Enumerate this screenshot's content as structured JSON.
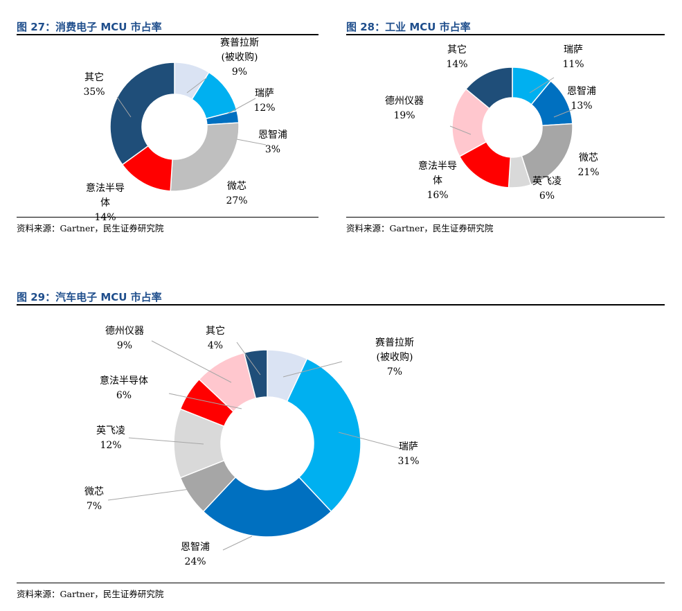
{
  "charts": [
    {
      "title": "图 27：消费电子 MCU 市占率",
      "source": "资料来源：Gartner，民生证券研究院",
      "chart_data": {
        "type": "pie",
        "donut": true,
        "categories": [
          "赛普拉斯(被收购)",
          "瑞萨",
          "恩智浦",
          "微芯",
          "意法半导体",
          "其它"
        ],
        "values": [
          9,
          12,
          3,
          27,
          14,
          35
        ],
        "labels": [
          {
            "lines": [
              "赛普拉斯",
              "(被收购)",
              "9%"
            ]
          },
          {
            "lines": [
              "瑞萨",
              "12%"
            ]
          },
          {
            "lines": [
              "恩智浦",
              "3%"
            ]
          },
          {
            "lines": [
              "微芯",
              "27%"
            ]
          },
          {
            "lines": [
              "意法半导",
              "体",
              "14%"
            ]
          },
          {
            "lines": [
              "其它",
              "35%"
            ]
          }
        ],
        "colors": [
          "#dae3f3",
          "#00b0f0",
          "#0070c0",
          "#bfbfbf",
          "#ff0000",
          "#1f4e79"
        ]
      }
    },
    {
      "title": "图 28：工业 MCU 市占率",
      "source": "资料来源：Gartner，民生证券研究院",
      "chart_data": {
        "type": "pie",
        "donut": true,
        "categories": [
          "瑞萨",
          "恩智浦",
          "微芯",
          "英飞凌",
          "意法半导体",
          "德州仪器",
          "其它"
        ],
        "values": [
          11,
          13,
          21,
          6,
          16,
          19,
          14
        ],
        "labels": [
          {
            "lines": [
              "瑞萨",
              "11%"
            ]
          },
          {
            "lines": [
              "恩智浦",
              "13%"
            ]
          },
          {
            "lines": [
              "微芯",
              "21%"
            ]
          },
          {
            "lines": [
              "英飞凌",
              "6%"
            ]
          },
          {
            "lines": [
              "意法半导",
              "体",
              "16%"
            ]
          },
          {
            "lines": [
              "德州仪器",
              "19%"
            ]
          },
          {
            "lines": [
              "其它",
              "14%"
            ]
          }
        ],
        "colors": [
          "#00b0f0",
          "#0070c0",
          "#a6a6a6",
          "#d9d9d9",
          "#ff0000",
          "#ffc7ce",
          "#1f4e79"
        ]
      }
    },
    {
      "title": "图 29：汽车电子 MCU 市占率",
      "source": "资料来源：Gartner，民生证券研究院",
      "chart_data": {
        "type": "pie",
        "donut": true,
        "categories": [
          "赛普拉斯(被收购)",
          "瑞萨",
          "恩智浦",
          "微芯",
          "英飞凌",
          "意法半导体",
          "德州仪器",
          "其它"
        ],
        "values": [
          7,
          31,
          24,
          7,
          12,
          6,
          9,
          4
        ],
        "labels": [
          {
            "lines": [
              "赛普拉斯",
              "(被收购)",
              "7%"
            ]
          },
          {
            "lines": [
              "瑞萨",
              "31%"
            ]
          },
          {
            "lines": [
              "恩智浦",
              "24%"
            ]
          },
          {
            "lines": [
              "微芯",
              "7%"
            ]
          },
          {
            "lines": [
              "英飞凌",
              "12%"
            ]
          },
          {
            "lines": [
              "意法半导体",
              "6%"
            ]
          },
          {
            "lines": [
              "德州仪器",
              "9%"
            ]
          },
          {
            "lines": [
              "其它",
              "4%"
            ]
          }
        ],
        "colors": [
          "#dae3f3",
          "#00b0f0",
          "#0070c0",
          "#a6a6a6",
          "#d9d9d9",
          "#ff0000",
          "#ffc7ce",
          "#1f4e79"
        ]
      }
    }
  ]
}
